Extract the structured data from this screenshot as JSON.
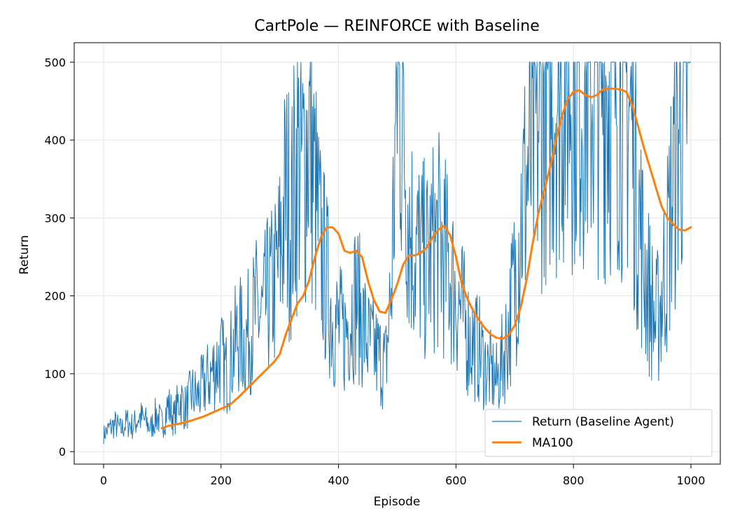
{
  "chart_data": {
    "type": "line",
    "title": "CartPole — REINFORCE with Baseline",
    "xlabel": "Episode",
    "ylabel": "Return",
    "xlim": [
      -50,
      1050
    ],
    "ylim": [
      -16,
      525
    ],
    "xticks": [
      0,
      200,
      400,
      600,
      800,
      1000
    ],
    "yticks": [
      0,
      100,
      200,
      300,
      400,
      500
    ],
    "xtick_labels": [
      "0",
      "200",
      "400",
      "600",
      "800",
      "1000"
    ],
    "ytick_labels": [
      "0",
      "100",
      "200",
      "300",
      "400",
      "500"
    ],
    "grid": true,
    "legend_position": "lower-right",
    "colors": {
      "raw": "#1f77b4",
      "ma": "#ff7f0e"
    },
    "series": [
      {
        "name": "Return (Baseline Agent)",
        "x_start": 0,
        "x_step": 10,
        "values": [
          22,
          30,
          35,
          28,
          38,
          32,
          45,
          40,
          30,
          48,
          35,
          60,
          42,
          70,
          55,
          75,
          70,
          85,
          95,
          110,
          120,
          100,
          130,
          150,
          140,
          160,
          180,
          170,
          200,
          210,
          250,
          330,
          300,
          380,
          360,
          420,
          330,
          260,
          220,
          170,
          160,
          150,
          180,
          200,
          170,
          140,
          130,
          120,
          110,
          210,
          480,
          430,
          300,
          260,
          250,
          240,
          260,
          270,
          250,
          230,
          200,
          180,
          150,
          140,
          130,
          110,
          100,
          90,
          120,
          160,
          220,
          300,
          350,
          380,
          420,
          460,
          470,
          480,
          490,
          480,
          500,
          490,
          480,
          470,
          490,
          480,
          470,
          490,
          480,
          460,
          420,
          320,
          240,
          200,
          160,
          200,
          260,
          350,
          420,
          480,
          500
        ]
      },
      {
        "name": "MA100",
        "x": [
          99,
          110,
          130,
          150,
          170,
          185,
          200,
          215,
          230,
          250,
          270,
          290,
          300,
          310,
          320,
          330,
          340,
          350,
          360,
          370,
          380,
          390,
          400,
          410,
          420,
          430,
          440,
          450,
          460,
          470,
          480,
          490,
          500,
          510,
          520,
          530,
          540,
          550,
          560,
          570,
          580,
          590,
          600,
          610,
          620,
          630,
          640,
          650,
          660,
          670,
          680,
          690,
          700,
          710,
          720,
          730,
          740,
          750,
          760,
          770,
          780,
          790,
          800,
          810,
          820,
          830,
          840,
          850,
          860,
          870,
          880,
          890,
          900,
          910,
          920,
          930,
          940,
          950,
          960,
          970,
          980,
          990,
          1000
        ],
        "values": [
          30,
          33,
          36,
          40,
          45,
          50,
          55,
          60,
          70,
          85,
          100,
          115,
          125,
          150,
          170,
          190,
          200,
          220,
          250,
          275,
          288,
          288,
          280,
          258,
          255,
          258,
          250,
          220,
          195,
          180,
          178,
          195,
          215,
          240,
          252,
          252,
          255,
          262,
          275,
          285,
          290,
          278,
          250,
          215,
          195,
          180,
          168,
          158,
          150,
          146,
          145,
          150,
          162,
          185,
          220,
          265,
          305,
          335,
          365,
          400,
          430,
          452,
          462,
          464,
          458,
          455,
          458,
          465,
          466,
          466,
          465,
          462,
          445,
          418,
          390,
          365,
          340,
          315,
          300,
          292,
          285,
          284,
          288
        ]
      }
    ]
  }
}
